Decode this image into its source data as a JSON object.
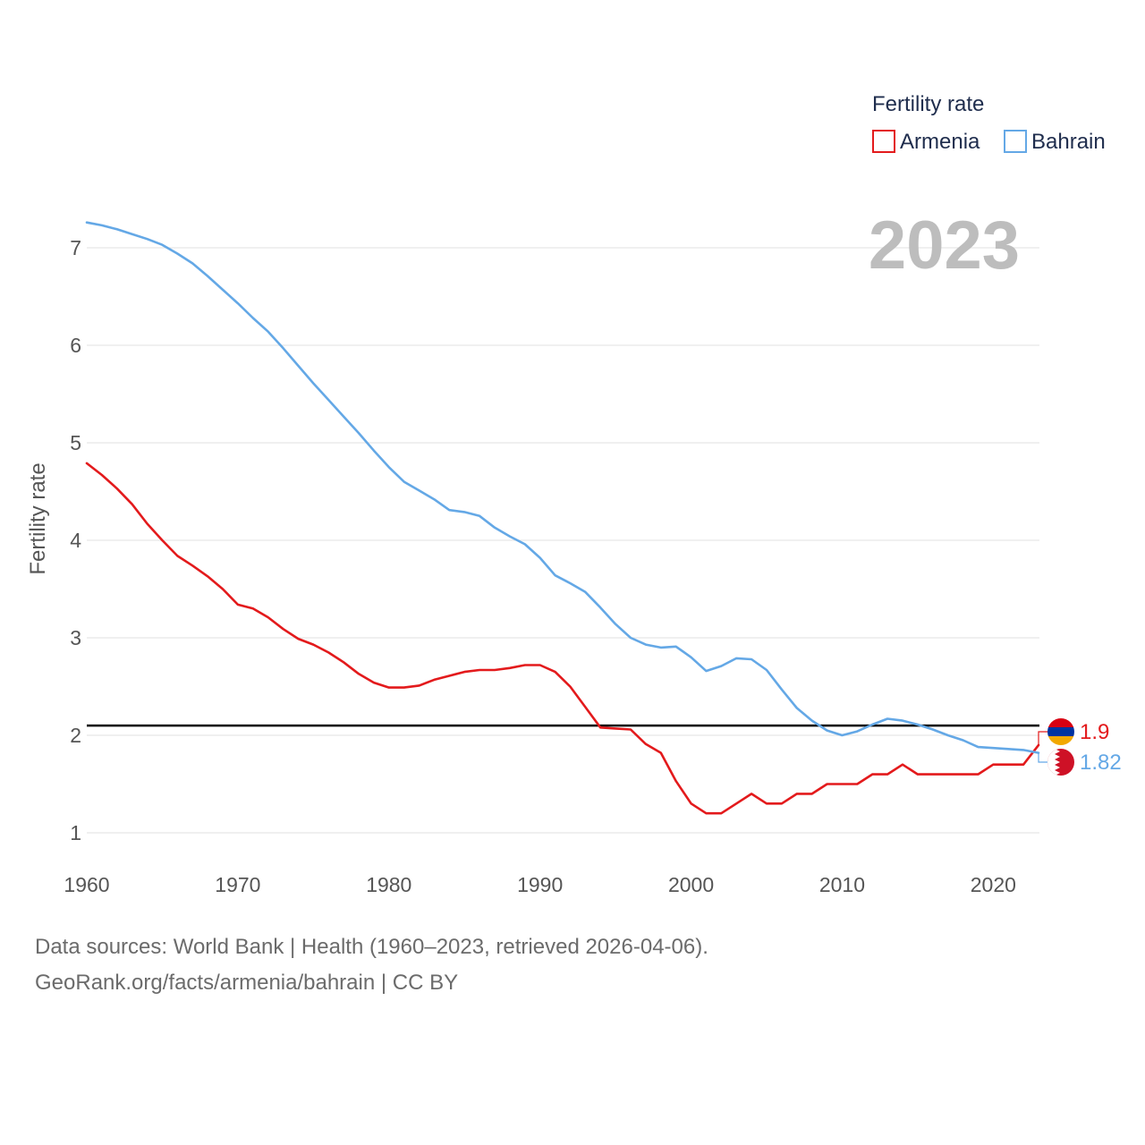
{
  "chart_data": {
    "type": "line",
    "title": "",
    "xlabel": "",
    "ylabel": "Fertility rate",
    "current_year_label": "2023",
    "xlim": [
      1960,
      2023
    ],
    "ylim": [
      0.85,
      7.35
    ],
    "x_ticks": [
      1960,
      1970,
      1980,
      1990,
      2000,
      2010,
      2020
    ],
    "y_ticks": [
      1,
      2,
      3,
      4,
      5,
      6,
      7
    ],
    "grid": true,
    "legend": {
      "title": "Fertility rate",
      "position": "top-right",
      "entries": [
        "Armenia",
        "Bahrain"
      ]
    },
    "reference_line": {
      "y": 2.1,
      "color": "#000000"
    },
    "series": [
      {
        "name": "Armenia",
        "color": "#e31a1c",
        "end_label": "1.9",
        "x": [
          1960,
          1961,
          1962,
          1963,
          1964,
          1965,
          1966,
          1967,
          1968,
          1969,
          1970,
          1971,
          1972,
          1973,
          1974,
          1975,
          1976,
          1977,
          1978,
          1979,
          1980,
          1981,
          1982,
          1983,
          1984,
          1985,
          1986,
          1987,
          1988,
          1989,
          1990,
          1991,
          1992,
          1993,
          1994,
          1995,
          1996,
          1997,
          1998,
          1999,
          2000,
          2001,
          2002,
          2003,
          2004,
          2005,
          2006,
          2007,
          2008,
          2009,
          2010,
          2011,
          2012,
          2013,
          2014,
          2015,
          2016,
          2017,
          2018,
          2019,
          2020,
          2021,
          2022,
          2023
        ],
        "values": [
          4.79,
          4.67,
          4.53,
          4.37,
          4.17,
          4.0,
          3.84,
          3.74,
          3.63,
          3.5,
          3.34,
          3.3,
          3.21,
          3.09,
          2.99,
          2.93,
          2.85,
          2.75,
          2.63,
          2.54,
          2.49,
          2.49,
          2.51,
          2.57,
          2.61,
          2.65,
          2.67,
          2.67,
          2.69,
          2.72,
          2.72,
          2.65,
          2.5,
          2.29,
          2.08,
          2.07,
          2.06,
          1.91,
          1.82,
          1.53,
          1.3,
          1.2,
          1.2,
          1.3,
          1.4,
          1.3,
          1.3,
          1.4,
          1.4,
          1.5,
          1.5,
          1.5,
          1.6,
          1.6,
          1.7,
          1.6,
          1.6,
          1.6,
          1.6,
          1.6,
          1.7,
          1.7,
          1.7,
          1.9
        ]
      },
      {
        "name": "Bahrain",
        "color": "#64a8e6",
        "end_label": "1.82",
        "x": [
          1960,
          1961,
          1962,
          1963,
          1964,
          1965,
          1966,
          1967,
          1968,
          1969,
          1970,
          1971,
          1972,
          1973,
          1974,
          1975,
          1976,
          1977,
          1978,
          1979,
          1980,
          1981,
          1982,
          1983,
          1984,
          1985,
          1986,
          1987,
          1988,
          1989,
          1990,
          1991,
          1992,
          1993,
          1994,
          1995,
          1996,
          1997,
          1998,
          1999,
          2000,
          2001,
          2002,
          2003,
          2004,
          2005,
          2006,
          2007,
          2008,
          2009,
          2010,
          2011,
          2012,
          2013,
          2014,
          2015,
          2016,
          2017,
          2018,
          2019,
          2020,
          2021,
          2022,
          2023
        ],
        "values": [
          7.26,
          7.23,
          7.19,
          7.14,
          7.09,
          7.03,
          6.94,
          6.84,
          6.71,
          6.57,
          6.43,
          6.28,
          6.14,
          5.97,
          5.79,
          5.61,
          5.44,
          5.27,
          5.1,
          4.92,
          4.75,
          4.6,
          4.51,
          4.42,
          4.31,
          4.29,
          4.25,
          4.13,
          4.04,
          3.96,
          3.82,
          3.64,
          3.56,
          3.47,
          3.31,
          3.14,
          3.0,
          2.93,
          2.9,
          2.91,
          2.8,
          2.66,
          2.71,
          2.79,
          2.78,
          2.67,
          2.47,
          2.28,
          2.15,
          2.05,
          2.0,
          2.04,
          2.11,
          2.17,
          2.15,
          2.11,
          2.06,
          2.0,
          1.95,
          1.88,
          1.87,
          1.86,
          1.85,
          1.82
        ]
      }
    ]
  },
  "footer": {
    "line1": "Data sources: World Bank | Health (1960–2023, retrieved 2026-04-06).",
    "line2": "GeoRank.org/facts/armenia/bahrain | CC BY"
  }
}
